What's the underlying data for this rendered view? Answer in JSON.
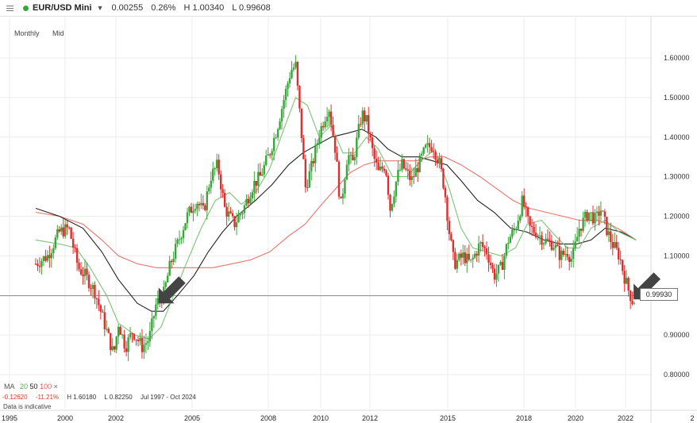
{
  "header": {
    "symbol": "EUR/USD Mini",
    "change": "0.00255",
    "change_pct": "0.26%",
    "high": "H 1.00340",
    "low": "L 0.99608",
    "status_color": "#2eaa3b"
  },
  "chart_settings": {
    "timeframe": "Monthly",
    "price_type": "Mid"
  },
  "legend": {
    "ma_label": "MA",
    "ma_periods": [
      "20",
      "50",
      "100"
    ],
    "ma_colors": [
      "#7cc476",
      "#222222",
      "#e8756b"
    ],
    "close_icon": "×",
    "change": "-0.12620",
    "change_pct": "-11.21%",
    "high": "H 1.60180",
    "low": "L 0.82250",
    "range": "Jul 1997 - Oct 2024",
    "disclaimer": "Data is indicative"
  },
  "current_price_label": "0.99930",
  "chart_data": {
    "type": "candlestick",
    "y_axis": {
      "min": 0.78,
      "max": 1.64,
      "ticks": [
        "1.60000",
        "1.50000",
        "1.40000",
        "1.30000",
        "1.20000",
        "1.10000",
        "0.90000",
        "0.80000"
      ],
      "side": "right"
    },
    "x_axis": {
      "min": 1997.5,
      "max": 2023.2,
      "ticks": [
        "1995",
        "2000",
        "2002",
        "2005",
        "2008",
        "2010",
        "2012",
        "2015",
        "2018",
        "2020",
        "2022",
        "2"
      ]
    },
    "grid": true,
    "current_price": 0.9993,
    "colors": {
      "up": "#3aa53a",
      "down": "#e02d2d",
      "ma20": "#7cc476",
      "ma50": "#222222",
      "ma100": "#e8756b"
    },
    "price_path": [
      [
        1997.5,
        1.08
      ],
      [
        1998.0,
        1.1
      ],
      [
        1998.5,
        1.16
      ],
      [
        1998.9,
        1.17
      ],
      [
        1999.3,
        1.07
      ],
      [
        1999.6,
        1.05
      ],
      [
        2000.0,
        1.01
      ],
      [
        2000.4,
        0.93
      ],
      [
        2000.8,
        0.85
      ],
      [
        2001.0,
        0.93
      ],
      [
        2001.3,
        0.87
      ],
      [
        2001.6,
        0.91
      ],
      [
        2002.0,
        0.87
      ],
      [
        2002.3,
        0.89
      ],
      [
        2002.6,
        0.98
      ],
      [
        2002.9,
        1.0
      ],
      [
        2003.2,
        1.08
      ],
      [
        2003.5,
        1.13
      ],
      [
        2003.9,
        1.2
      ],
      [
        2004.3,
        1.24
      ],
      [
        2004.6,
        1.21
      ],
      [
        2004.9,
        1.3
      ],
      [
        2005.2,
        1.33
      ],
      [
        2005.5,
        1.22
      ],
      [
        2005.9,
        1.18
      ],
      [
        2006.3,
        1.22
      ],
      [
        2006.7,
        1.28
      ],
      [
        2007.0,
        1.3
      ],
      [
        2007.4,
        1.36
      ],
      [
        2007.7,
        1.42
      ],
      [
        2007.9,
        1.47
      ],
      [
        2008.3,
        1.57
      ],
      [
        2008.5,
        1.58
      ],
      [
        2008.8,
        1.37
      ],
      [
        2008.9,
        1.27
      ],
      [
        2009.2,
        1.33
      ],
      [
        2009.5,
        1.41
      ],
      [
        2009.9,
        1.48
      ],
      [
        2010.2,
        1.36
      ],
      [
        2010.4,
        1.22
      ],
      [
        2010.7,
        1.36
      ],
      [
        2010.9,
        1.33
      ],
      [
        2011.3,
        1.46
      ],
      [
        2011.5,
        1.44
      ],
      [
        2011.8,
        1.35
      ],
      [
        2012.0,
        1.31
      ],
      [
        2012.3,
        1.33
      ],
      [
        2012.5,
        1.22
      ],
      [
        2012.8,
        1.3
      ],
      [
        2013.0,
        1.33
      ],
      [
        2013.4,
        1.29
      ],
      [
        2013.7,
        1.33
      ],
      [
        2014.0,
        1.37
      ],
      [
        2014.3,
        1.38
      ],
      [
        2014.6,
        1.33
      ],
      [
        2014.8,
        1.27
      ],
      [
        2015.0,
        1.16
      ],
      [
        2015.2,
        1.08
      ],
      [
        2015.6,
        1.1
      ],
      [
        2015.9,
        1.08
      ],
      [
        2016.3,
        1.13
      ],
      [
        2016.6,
        1.11
      ],
      [
        2016.9,
        1.05
      ],
      [
        2017.2,
        1.07
      ],
      [
        2017.5,
        1.14
      ],
      [
        2017.8,
        1.17
      ],
      [
        2018.1,
        1.24
      ],
      [
        2018.4,
        1.17
      ],
      [
        2018.7,
        1.16
      ],
      [
        2019.0,
        1.14
      ],
      [
        2019.4,
        1.13
      ],
      [
        2019.7,
        1.1
      ],
      [
        2020.0,
        1.11
      ],
      [
        2020.2,
        1.09
      ],
      [
        2020.5,
        1.17
      ],
      [
        2020.9,
        1.21
      ],
      [
        2021.2,
        1.19
      ],
      [
        2021.4,
        1.22
      ],
      [
        2021.7,
        1.16
      ],
      [
        2021.9,
        1.13
      ],
      [
        2022.2,
        1.1
      ],
      [
        2022.4,
        1.05
      ],
      [
        2022.6,
        1.01
      ],
      [
        2022.8,
        0.98
      ],
      [
        2022.9,
        1.0
      ]
    ],
    "ma20": [
      [
        1997.5,
        1.14
      ],
      [
        1998.5,
        1.13
      ],
      [
        1999.2,
        1.12
      ],
      [
        1999.8,
        1.07
      ],
      [
        2000.5,
        1.0
      ],
      [
        2001.0,
        0.93
      ],
      [
        2001.7,
        0.9
      ],
      [
        2002.3,
        0.89
      ],
      [
        2002.8,
        0.92
      ],
      [
        2003.2,
        0.98
      ],
      [
        2003.8,
        1.07
      ],
      [
        2004.5,
        1.17
      ],
      [
        2005.1,
        1.24
      ],
      [
        2005.7,
        1.26
      ],
      [
        2006.2,
        1.23
      ],
      [
        2006.8,
        1.26
      ],
      [
        2007.4,
        1.32
      ],
      [
        2008.0,
        1.42
      ],
      [
        2008.5,
        1.5
      ],
      [
        2009.0,
        1.48
      ],
      [
        2009.5,
        1.4
      ],
      [
        2010.0,
        1.43
      ],
      [
        2010.5,
        1.36
      ],
      [
        2011.0,
        1.36
      ],
      [
        2011.5,
        1.4
      ],
      [
        2012.0,
        1.37
      ],
      [
        2012.6,
        1.3
      ],
      [
        2013.2,
        1.3
      ],
      [
        2013.8,
        1.34
      ],
      [
        2014.4,
        1.37
      ],
      [
        2015.0,
        1.27
      ],
      [
        2015.5,
        1.17
      ],
      [
        2016.0,
        1.12
      ],
      [
        2016.6,
        1.11
      ],
      [
        2017.2,
        1.1
      ],
      [
        2017.8,
        1.12
      ],
      [
        2018.3,
        1.18
      ],
      [
        2018.9,
        1.19
      ],
      [
        2019.5,
        1.15
      ],
      [
        2020.0,
        1.12
      ],
      [
        2020.5,
        1.12
      ],
      [
        2021.0,
        1.17
      ],
      [
        2021.6,
        1.19
      ],
      [
        2022.2,
        1.16
      ],
      [
        2022.9,
        1.14
      ]
    ],
    "ma50": [
      [
        1997.5,
        1.22
      ],
      [
        1998.5,
        1.2
      ],
      [
        1999.5,
        1.17
      ],
      [
        2000.3,
        1.11
      ],
      [
        2001.0,
        1.04
      ],
      [
        2001.8,
        0.98
      ],
      [
        2002.4,
        0.96
      ],
      [
        2002.9,
        0.96
      ],
      [
        2003.5,
        1.0
      ],
      [
        2004.2,
        1.05
      ],
      [
        2004.8,
        1.11
      ],
      [
        2005.4,
        1.16
      ],
      [
        2006.0,
        1.2
      ],
      [
        2006.8,
        1.24
      ],
      [
        2007.5,
        1.28
      ],
      [
        2008.2,
        1.33
      ],
      [
        2008.8,
        1.36
      ],
      [
        2009.4,
        1.38
      ],
      [
        2010.0,
        1.4
      ],
      [
        2010.7,
        1.41
      ],
      [
        2011.3,
        1.42
      ],
      [
        2011.9,
        1.4
      ],
      [
        2012.4,
        1.37
      ],
      [
        2013.0,
        1.35
      ],
      [
        2013.7,
        1.35
      ],
      [
        2014.3,
        1.34
      ],
      [
        2014.9,
        1.33
      ],
      [
        2015.5,
        1.29
      ],
      [
        2016.2,
        1.24
      ],
      [
        2016.9,
        1.21
      ],
      [
        2017.6,
        1.17
      ],
      [
        2018.3,
        1.16
      ],
      [
        2019.0,
        1.14
      ],
      [
        2019.7,
        1.13
      ],
      [
        2020.4,
        1.13
      ],
      [
        2021.0,
        1.14
      ],
      [
        2021.6,
        1.17
      ],
      [
        2022.3,
        1.16
      ],
      [
        2022.9,
        1.14
      ]
    ],
    "ma100": [
      [
        1997.5,
        1.21
      ],
      [
        1998.5,
        1.2
      ],
      [
        1999.5,
        1.18
      ],
      [
        2000.3,
        1.14
      ],
      [
        2001.0,
        1.1
      ],
      [
        2001.8,
        1.08
      ],
      [
        2002.6,
        1.07
      ],
      [
        2003.4,
        1.07
      ],
      [
        2004.2,
        1.07
      ],
      [
        2005.0,
        1.07
      ],
      [
        2005.8,
        1.08
      ],
      [
        2006.6,
        1.09
      ],
      [
        2007.4,
        1.11
      ],
      [
        2008.2,
        1.15
      ],
      [
        2008.9,
        1.18
      ],
      [
        2009.6,
        1.23
      ],
      [
        2010.2,
        1.27
      ],
      [
        2010.8,
        1.31
      ],
      [
        2011.4,
        1.33
      ],
      [
        2012.0,
        1.34
      ],
      [
        2012.8,
        1.34
      ],
      [
        2013.6,
        1.34
      ],
      [
        2014.2,
        1.35
      ],
      [
        2014.8,
        1.35
      ],
      [
        2015.5,
        1.33
      ],
      [
        2016.3,
        1.3
      ],
      [
        2017.0,
        1.27
      ],
      [
        2017.7,
        1.24
      ],
      [
        2018.4,
        1.22
      ],
      [
        2019.1,
        1.21
      ],
      [
        2019.8,
        1.2
      ],
      [
        2020.5,
        1.19
      ],
      [
        2021.2,
        1.19
      ],
      [
        2021.8,
        1.18
      ],
      [
        2022.4,
        1.16
      ],
      [
        2022.9,
        1.14
      ]
    ],
    "annotations": [
      {
        "shape": "arrow",
        "direction": "down-right",
        "color": "#444444",
        "tip": [
          2002.7,
          0.98
        ]
      },
      {
        "shape": "arrow",
        "direction": "down-right",
        "color": "#444444",
        "tip": [
          2022.8,
          0.99
        ]
      }
    ]
  }
}
